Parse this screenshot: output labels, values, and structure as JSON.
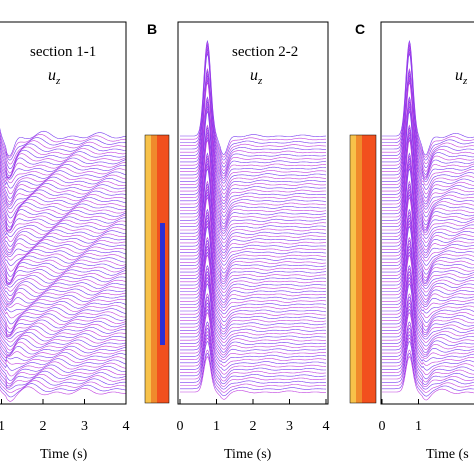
{
  "chart_data": [
    {
      "panel": "",
      "type": "line",
      "title": "section 1-1",
      "component": {
        "symbol": "u",
        "subscript": "z"
      },
      "xlabel": "Time (s)",
      "xticks": [
        "1",
        "2",
        "3",
        "4"
      ],
      "xlim": [
        0,
        4
      ],
      "pulse_peak_time": 0.75,
      "late_ripple": "strong",
      "colors": {
        "trace_a": "#7a3cf0",
        "trace_b": "#c040e0"
      }
    },
    {
      "panel": "B",
      "type": "line",
      "title": "section 2-2",
      "component": {
        "symbol": "u",
        "subscript": "z"
      },
      "xlabel": "Time (s)",
      "xticks": [
        "0",
        "1",
        "2",
        "3",
        "4"
      ],
      "xlim": [
        0,
        4
      ],
      "pulse_peak_time": 0.75,
      "late_ripple": "weak",
      "colors": {
        "trace_a": "#7a3cf0",
        "trace_b": "#c040e0"
      }
    },
    {
      "panel": "C",
      "type": "line",
      "title": "",
      "component": {
        "symbol": "u",
        "subscript": "z"
      },
      "xlabel": "Time (s",
      "xticks": [
        "0",
        "1"
      ],
      "xlim": [
        0,
        4
      ],
      "pulse_peak_time": 0.75,
      "late_ripple": "medium",
      "colors": {
        "trace_a": "#7a3cf0",
        "trace_b": "#c040e0"
      }
    }
  ],
  "profiles": [
    {
      "name": "profile-b",
      "colors": [
        "#f7c24a",
        "#f08a2c",
        "#f2501e",
        "#2b2ed6"
      ]
    },
    {
      "name": "profile-c",
      "colors": [
        "#f7c24a",
        "#f08a2c",
        "#f2501e"
      ]
    }
  ]
}
